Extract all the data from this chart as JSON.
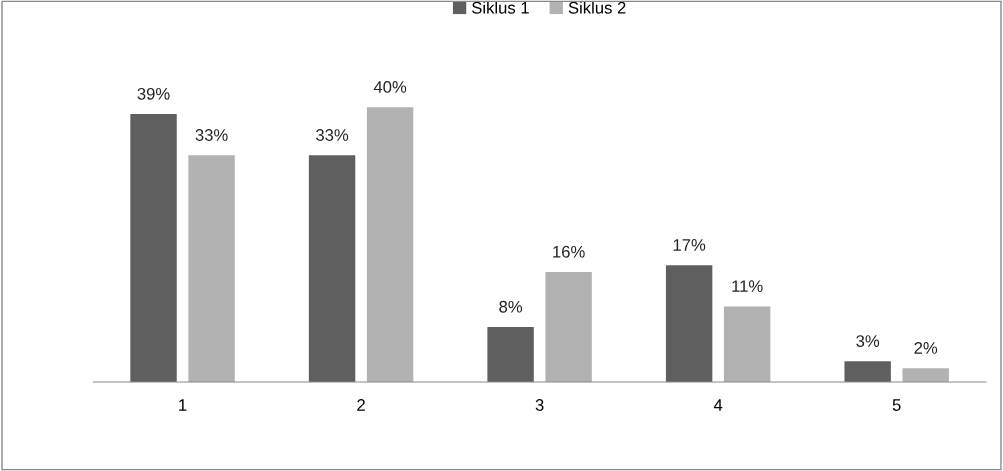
{
  "chart_data": {
    "type": "bar",
    "categories": [
      "1",
      "2",
      "3",
      "4",
      "5"
    ],
    "series": [
      {
        "name": "Siklus 1",
        "color": "#5f5f5f",
        "values": [
          39,
          33,
          8,
          17,
          3
        ],
        "value_labels": [
          "39%",
          "33%",
          "8%",
          "17%",
          "3%"
        ]
      },
      {
        "name": "Siklus 2",
        "color": "#b2b2b2",
        "values": [
          33,
          40,
          16,
          11,
          2
        ],
        "value_labels": [
          "33%",
          "40%",
          "16%",
          "11%",
          "2%"
        ]
      }
    ],
    "legend": "top",
    "grid": false,
    "tick_labels": "x"
  }
}
